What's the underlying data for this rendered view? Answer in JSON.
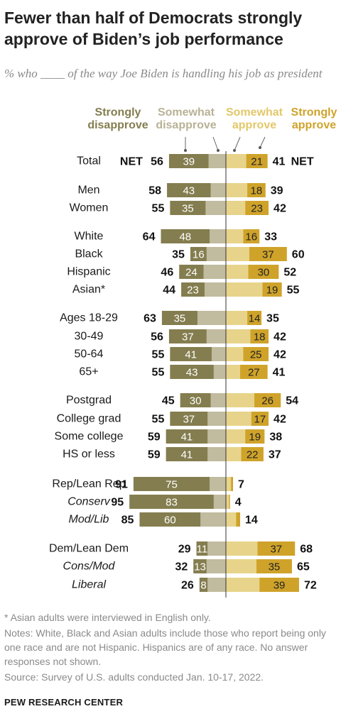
{
  "title": "Fewer than half of Democrats strongly approve of Biden’s job performance",
  "subtitle": "% who ____ of the way Joe Biden is handling his job as president",
  "legend": {
    "strongly_disapprove": "Strongly disapprove",
    "somewhat_disapprove": "Somewhat disapprove",
    "somewhat_approve": "Somewhat approve",
    "strongly_approve": "Strongly approve"
  },
  "net_label": "NET",
  "colors": {
    "strongly_disapprove": "#847d4f",
    "somewhat_disapprove": "#c1bb9f",
    "somewhat_approve": "#e7d48a",
    "strongly_approve": "#cfa32a",
    "legend_sd": "#847d4f",
    "legend_swd": "#b8b296",
    "legend_swa": "#e3c86a",
    "legend_sa": "#cfa32a"
  },
  "chart_data": {
    "type": "bar",
    "layout": "diverging stacked horizontal",
    "series": [
      {
        "name": "Strongly disapprove"
      },
      {
        "name": "Somewhat disapprove"
      },
      {
        "name": "Somewhat approve"
      },
      {
        "name": "Strongly approve"
      }
    ],
    "rows": [
      {
        "label": "Total",
        "italic": false,
        "net_disapprove": 56,
        "strongly_disapprove": 39,
        "net_approve": 41,
        "strongly_approve": 21,
        "show_net": true
      },
      {
        "label": "Men",
        "italic": false,
        "net_disapprove": 58,
        "strongly_disapprove": 43,
        "net_approve": 39,
        "strongly_approve": 18
      },
      {
        "label": "Women",
        "italic": false,
        "net_disapprove": 55,
        "strongly_disapprove": 35,
        "net_approve": 42,
        "strongly_approve": 23
      },
      {
        "label": "White",
        "italic": false,
        "net_disapprove": 64,
        "strongly_disapprove": 48,
        "net_approve": 33,
        "strongly_approve": 16
      },
      {
        "label": "Black",
        "italic": false,
        "net_disapprove": 35,
        "strongly_disapprove": 16,
        "net_approve": 60,
        "strongly_approve": 37
      },
      {
        "label": "Hispanic",
        "italic": false,
        "net_disapprove": 46,
        "strongly_disapprove": 24,
        "net_approve": 52,
        "strongly_approve": 30
      },
      {
        "label": "Asian*",
        "italic": false,
        "net_disapprove": 44,
        "strongly_disapprove": 23,
        "net_approve": 55,
        "strongly_approve": 19
      },
      {
        "label": "Ages 18-29",
        "italic": false,
        "net_disapprove": 63,
        "strongly_disapprove": 35,
        "net_approve": 35,
        "strongly_approve": 14
      },
      {
        "label": "30-49",
        "italic": false,
        "net_disapprove": 56,
        "strongly_disapprove": 37,
        "net_approve": 42,
        "strongly_approve": 18
      },
      {
        "label": "50-64",
        "italic": false,
        "net_disapprove": 55,
        "strongly_disapprove": 41,
        "net_approve": 42,
        "strongly_approve": 25
      },
      {
        "label": "65+",
        "italic": false,
        "net_disapprove": 55,
        "strongly_disapprove": 43,
        "net_approve": 41,
        "strongly_approve": 27
      },
      {
        "label": "Postgrad",
        "italic": false,
        "net_disapprove": 45,
        "strongly_disapprove": 30,
        "net_approve": 54,
        "strongly_approve": 26
      },
      {
        "label": "College grad",
        "italic": false,
        "net_disapprove": 55,
        "strongly_disapprove": 37,
        "net_approve": 42,
        "strongly_approve": 17
      },
      {
        "label": "Some college",
        "italic": false,
        "net_disapprove": 59,
        "strongly_disapprove": 41,
        "net_approve": 38,
        "strongly_approve": 19
      },
      {
        "label": "HS or less",
        "italic": false,
        "net_disapprove": 59,
        "strongly_disapprove": 41,
        "net_approve": 37,
        "strongly_approve": 22
      },
      {
        "label": "Rep/Lean Rep",
        "italic": false,
        "net_disapprove": 91,
        "strongly_disapprove": 75,
        "net_approve": 7,
        "strongly_approve": 2
      },
      {
        "label": "Conserv",
        "italic": true,
        "net_disapprove": 95,
        "strongly_disapprove": 83,
        "net_approve": 4,
        "strongly_approve": 1
      },
      {
        "label": "Mod/Lib",
        "italic": true,
        "net_disapprove": 85,
        "strongly_disapprove": 60,
        "net_approve": 14,
        "strongly_approve": 4
      },
      {
        "label": "Dem/Lean Dem",
        "italic": false,
        "net_disapprove": 29,
        "strongly_disapprove": 11,
        "net_approve": 68,
        "strongly_approve": 37
      },
      {
        "label": "Cons/Mod",
        "italic": true,
        "net_disapprove": 32,
        "strongly_disapprove": 13,
        "net_approve": 65,
        "strongly_approve": 35
      },
      {
        "label": "Liberal",
        "italic": true,
        "net_disapprove": 26,
        "strongly_disapprove": 8,
        "net_approve": 72,
        "strongly_approve": 39
      }
    ]
  },
  "footnotes": {
    "asterisk": "* Asian adults were interviewed in English only.",
    "notes": "Notes: White, Black and Asian adults include those who report being only one race and are not Hispanic. Hispanics are of any race. No answer responses not shown.",
    "source": "Source: Survey of U.S. adults conducted Jan. 10-17, 2022."
  },
  "org": "PEW RESEARCH CENTER"
}
